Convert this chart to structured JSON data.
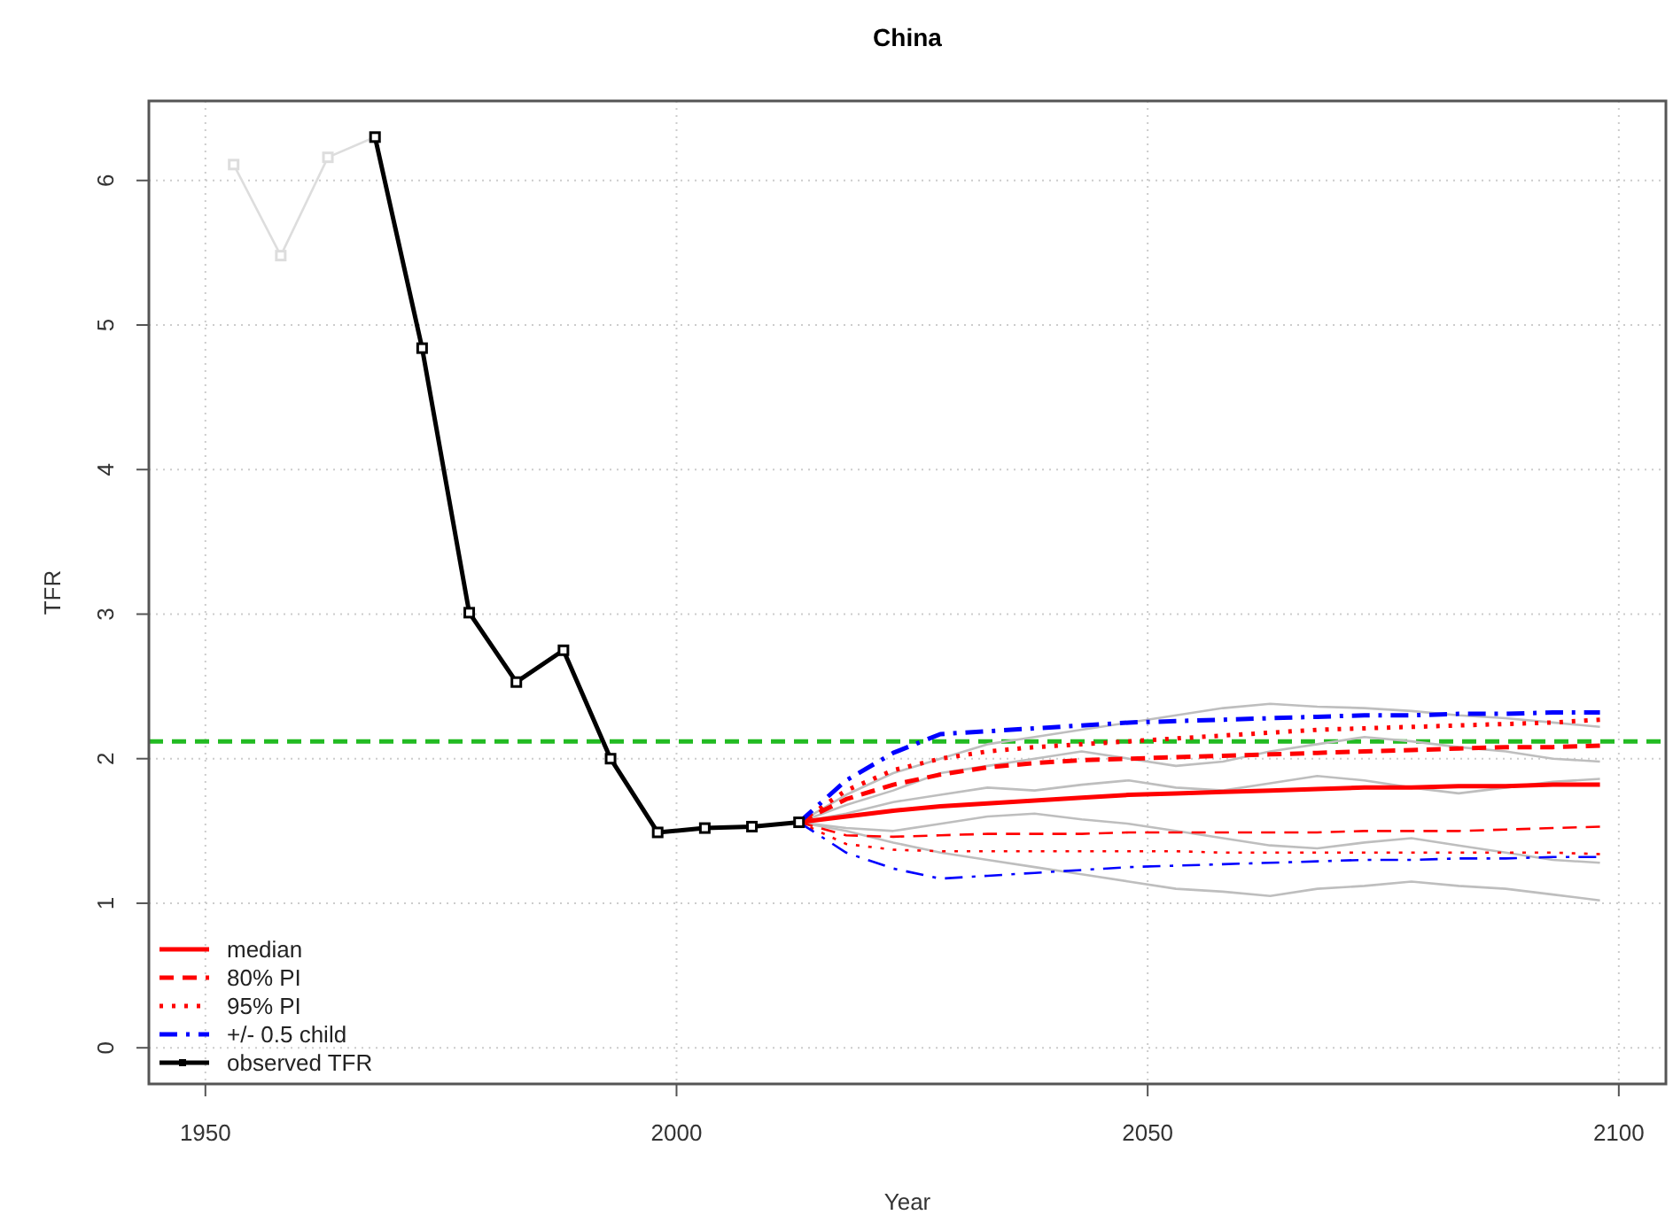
{
  "chart_data": {
    "type": "line",
    "title": "China",
    "xlabel": "Year",
    "ylabel": "TFR",
    "xlim": [
      1944,
      2105
    ],
    "xticks": [
      1950,
      2000,
      2050,
      2100
    ],
    "ylim": [
      -0.25,
      6.55
    ],
    "yticks": [
      0,
      1,
      2,
      3,
      4,
      5,
      6
    ],
    "grid": true,
    "legend": "bottom left",
    "ref_lines": [
      {
        "axis": "y",
        "value": 2.12,
        "color": "#22bb22",
        "line_style": "dashed"
      }
    ],
    "series": [
      {
        "color": "#bebebe",
        "line_style": "solid",
        "marker": "none",
        "x": [
          2013,
          2018,
          2023,
          2028,
          2033,
          2038,
          2043,
          2048,
          2053,
          2058,
          2063,
          2068,
          2073,
          2078,
          2083,
          2088,
          2093,
          2098
        ],
        "values": [
          1.56,
          1.5,
          1.42,
          1.35,
          1.3,
          1.25,
          1.2,
          1.15,
          1.1,
          1.08,
          1.05,
          1.1,
          1.12,
          1.15,
          1.12,
          1.1,
          1.06,
          1.02
        ]
      },
      {
        "color": "#bebebe",
        "line_style": "solid",
        "marker": "none",
        "x": [
          2013,
          2018,
          2023,
          2028,
          2033,
          2038,
          2043,
          2048,
          2053,
          2058,
          2063,
          2068,
          2073,
          2078,
          2083,
          2088,
          2093,
          2098
        ],
        "values": [
          1.56,
          1.75,
          1.9,
          2.0,
          2.1,
          2.15,
          2.2,
          2.25,
          2.3,
          2.35,
          2.38,
          2.36,
          2.35,
          2.33,
          2.3,
          2.28,
          2.25,
          2.22
        ]
      },
      {
        "color": "#bebebe",
        "line_style": "solid",
        "marker": "none",
        "x": [
          2013,
          2018,
          2023,
          2028,
          2033,
          2038,
          2043,
          2048,
          2053,
          2058,
          2063,
          2068,
          2073,
          2078,
          2083,
          2088,
          2093,
          2098
        ],
        "values": [
          1.56,
          1.62,
          1.7,
          1.75,
          1.8,
          1.78,
          1.82,
          1.85,
          1.8,
          1.78,
          1.83,
          1.88,
          1.85,
          1.8,
          1.76,
          1.8,
          1.84,
          1.86
        ]
      },
      {
        "color": "#bebebe",
        "line_style": "solid",
        "marker": "none",
        "x": [
          2013,
          2018,
          2023,
          2028,
          2033,
          2038,
          2043,
          2048,
          2053,
          2058,
          2063,
          2068,
          2073,
          2078,
          2083,
          2088,
          2093,
          2098
        ],
        "values": [
          1.56,
          1.52,
          1.5,
          1.55,
          1.6,
          1.62,
          1.58,
          1.55,
          1.5,
          1.45,
          1.4,
          1.38,
          1.42,
          1.45,
          1.4,
          1.35,
          1.3,
          1.28
        ]
      },
      {
        "color": "#bebebe",
        "line_style": "solid",
        "marker": "none",
        "x": [
          2013,
          2018,
          2023,
          2028,
          2033,
          2038,
          2043,
          2048,
          2053,
          2058,
          2063,
          2068,
          2073,
          2078,
          2083,
          2088,
          2093,
          2098
        ],
        "values": [
          1.56,
          1.68,
          1.78,
          1.9,
          1.95,
          2.0,
          2.05,
          2.0,
          1.95,
          1.98,
          2.05,
          2.1,
          2.15,
          2.12,
          2.08,
          2.05,
          2.0,
          1.98
        ]
      },
      {
        "color": "#dddddd",
        "line_style": "solid",
        "marker": "square",
        "x": [
          1953,
          1958,
          1963,
          1968
        ],
        "values": [
          6.11,
          5.48,
          6.16,
          6.3
        ]
      },
      {
        "name": "median",
        "color": "#ff0000",
        "line_style": "solid",
        "marker": "none",
        "x": [
          2013,
          2018,
          2023,
          2028,
          2033,
          2038,
          2043,
          2048,
          2053,
          2058,
          2063,
          2068,
          2073,
          2078,
          2083,
          2088,
          2093,
          2098
        ],
        "values": [
          1.56,
          1.6,
          1.64,
          1.67,
          1.69,
          1.71,
          1.73,
          1.75,
          1.76,
          1.77,
          1.78,
          1.79,
          1.8,
          1.8,
          1.81,
          1.81,
          1.82,
          1.82
        ]
      },
      {
        "name": "80% PI",
        "color": "#ff0000",
        "line_style": "dashed",
        "marker": "none",
        "x": [
          2013,
          2018,
          2023,
          2028,
          2033,
          2038,
          2043,
          2048,
          2053,
          2058,
          2063,
          2068,
          2073,
          2078,
          2083,
          2088,
          2093,
          2098
        ],
        "values": [
          1.56,
          1.72,
          1.82,
          1.89,
          1.94,
          1.97,
          1.99,
          2.0,
          2.01,
          2.02,
          2.03,
          2.04,
          2.05,
          2.06,
          2.07,
          2.08,
          2.08,
          2.09
        ]
      },
      {
        "color": "#ff0000",
        "line_style": "dashed",
        "marker": "none",
        "x": [
          2013,
          2018,
          2023,
          2028,
          2033,
          2038,
          2043,
          2048,
          2053,
          2058,
          2063,
          2068,
          2073,
          2078,
          2083,
          2088,
          2093,
          2098
        ],
        "values": [
          1.56,
          1.47,
          1.46,
          1.47,
          1.48,
          1.48,
          1.48,
          1.49,
          1.49,
          1.49,
          1.49,
          1.49,
          1.5,
          1.5,
          1.5,
          1.51,
          1.52,
          1.53
        ]
      },
      {
        "name": "95% PI",
        "color": "#ff0000",
        "line_style": "dotted",
        "marker": "none",
        "x": [
          2013,
          2018,
          2023,
          2028,
          2033,
          2038,
          2043,
          2048,
          2053,
          2058,
          2063,
          2068,
          2073,
          2078,
          2083,
          2088,
          2093,
          2098
        ],
        "values": [
          1.56,
          1.78,
          1.92,
          2.0,
          2.05,
          2.08,
          2.1,
          2.12,
          2.14,
          2.16,
          2.18,
          2.2,
          2.21,
          2.22,
          2.23,
          2.24,
          2.25,
          2.27
        ]
      },
      {
        "color": "#ff0000",
        "line_style": "dotted",
        "marker": "none",
        "x": [
          2013,
          2018,
          2023,
          2028,
          2033,
          2038,
          2043,
          2048,
          2053,
          2058,
          2063,
          2068,
          2073,
          2078,
          2083,
          2088,
          2093,
          2098
        ],
        "values": [
          1.56,
          1.41,
          1.37,
          1.36,
          1.36,
          1.36,
          1.36,
          1.36,
          1.36,
          1.35,
          1.35,
          1.35,
          1.35,
          1.35,
          1.35,
          1.35,
          1.35,
          1.34
        ]
      },
      {
        "name": "+/- 0.5 child",
        "color": "#0000ff",
        "line_style": "dashdot",
        "marker": "none",
        "x": [
          2013,
          2018,
          2023,
          2028,
          2033,
          2038,
          2043,
          2048,
          2053,
          2058,
          2063,
          2068,
          2073,
          2078,
          2083,
          2088,
          2093,
          2098
        ],
        "values": [
          1.56,
          1.85,
          2.04,
          2.17,
          2.19,
          2.21,
          2.23,
          2.25,
          2.26,
          2.27,
          2.28,
          2.29,
          2.3,
          2.3,
          2.31,
          2.31,
          2.32,
          2.32
        ]
      },
      {
        "color": "#0000ff",
        "line_style": "dashdot",
        "marker": "none",
        "x": [
          2013,
          2018,
          2023,
          2028,
          2033,
          2038,
          2043,
          2048,
          2053,
          2058,
          2063,
          2068,
          2073,
          2078,
          2083,
          2088,
          2093,
          2098
        ],
        "values": [
          1.56,
          1.35,
          1.24,
          1.17,
          1.19,
          1.21,
          1.23,
          1.25,
          1.26,
          1.27,
          1.28,
          1.29,
          1.3,
          1.3,
          1.31,
          1.31,
          1.32,
          1.32
        ]
      },
      {
        "name": "observed TFR",
        "color": "#000000",
        "line_style": "solid",
        "marker": "square",
        "x": [
          1968,
          1973,
          1978,
          1983,
          1988,
          1993,
          1998,
          2003,
          2008,
          2013
        ],
        "values": [
          6.3,
          4.84,
          3.01,
          2.53,
          2.75,
          2.0,
          1.49,
          1.52,
          1.53,
          1.56
        ]
      }
    ]
  }
}
